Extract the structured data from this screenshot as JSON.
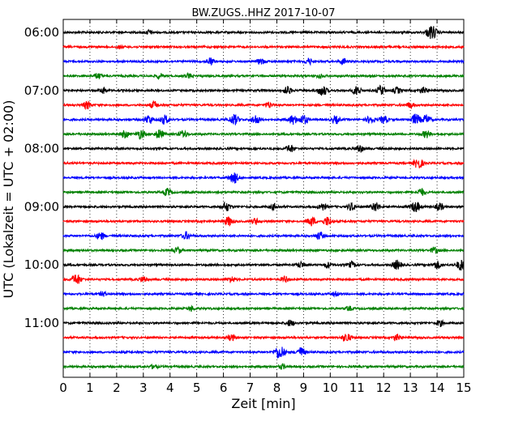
{
  "chart_data": {
    "type": "line",
    "title": "BW.ZUGS..HHZ 2017-10-07",
    "xlabel": "Zeit  [min]",
    "ylabel": "UTC (Lokalzeit = UTC + 02:00)",
    "xlim": [
      0,
      15
    ],
    "x_ticks": [
      0,
      1,
      2,
      3,
      4,
      5,
      6,
      7,
      8,
      9,
      10,
      11,
      12,
      13,
      14,
      15
    ],
    "x_tick_labels": [
      "0",
      "1",
      "2",
      "3",
      "4",
      "5",
      "6",
      "7",
      "8",
      "9",
      "10",
      "11",
      "12",
      "13",
      "14",
      "15"
    ],
    "y_tick_labels": [
      "06:00",
      "07:00",
      "08:00",
      "09:00",
      "10:00",
      "11:00"
    ],
    "grid": "vertical dotted",
    "trace_interval_minutes": 15,
    "traces": [
      {
        "start": "06:00",
        "color": "#000000",
        "events": [
          [
            3.2,
            0.3
          ],
          [
            13.8,
            0.9
          ]
        ]
      },
      {
        "start": "06:15",
        "color": "#ff0000",
        "events": [
          [
            2.1,
            0.2
          ]
        ]
      },
      {
        "start": "06:30",
        "color": "#0000ff",
        "events": [
          [
            5.5,
            0.5
          ],
          [
            7.4,
            0.4
          ],
          [
            9.2,
            0.4
          ],
          [
            10.5,
            0.4
          ]
        ]
      },
      {
        "start": "06:45",
        "color": "#008000",
        "events": [
          [
            1.3,
            0.4
          ],
          [
            3.6,
            0.35
          ],
          [
            4.7,
            0.3
          ],
          [
            9.6,
            0.3
          ]
        ]
      },
      {
        "start": "07:00",
        "color": "#000000",
        "events": [
          [
            1.5,
            0.4
          ],
          [
            8.4,
            0.5
          ],
          [
            9.7,
            0.7
          ],
          [
            11.0,
            0.6
          ],
          [
            11.9,
            0.6
          ],
          [
            12.5,
            0.4
          ],
          [
            13.5,
            0.4
          ]
        ]
      },
      {
        "start": "07:15",
        "color": "#ff0000",
        "events": [
          [
            0.9,
            0.5
          ],
          [
            3.4,
            0.5
          ],
          [
            7.7,
            0.4
          ],
          [
            13.0,
            0.4
          ]
        ]
      },
      {
        "start": "07:30",
        "color": "#0000ff",
        "events": [
          [
            3.2,
            0.6
          ],
          [
            3.8,
            0.6
          ],
          [
            6.4,
            0.7
          ],
          [
            7.2,
            0.6
          ],
          [
            8.6,
            0.6
          ],
          [
            9.0,
            0.6
          ],
          [
            10.2,
            0.5
          ],
          [
            11.5,
            0.5
          ],
          [
            12.0,
            0.5
          ],
          [
            13.2,
            0.7
          ],
          [
            13.6,
            0.6
          ]
        ]
      },
      {
        "start": "07:45",
        "color": "#008000",
        "events": [
          [
            2.3,
            0.5
          ],
          [
            2.9,
            0.6
          ],
          [
            3.6,
            0.6
          ],
          [
            4.5,
            0.5
          ],
          [
            13.6,
            0.5
          ]
        ]
      },
      {
        "start": "08:00",
        "color": "#000000",
        "events": [
          [
            8.5,
            0.5
          ],
          [
            11.1,
            0.5
          ]
        ]
      },
      {
        "start": "08:15",
        "color": "#ff0000",
        "events": [
          [
            13.3,
            0.7
          ]
        ]
      },
      {
        "start": "08:30",
        "color": "#0000ff",
        "events": [
          [
            6.4,
            0.7
          ]
        ]
      },
      {
        "start": "08:45",
        "color": "#008000",
        "events": [
          [
            3.9,
            0.5
          ],
          [
            13.4,
            0.5
          ]
        ]
      },
      {
        "start": "09:00",
        "color": "#000000",
        "events": [
          [
            6.1,
            0.6
          ],
          [
            7.9,
            0.4
          ],
          [
            9.7,
            0.5
          ],
          [
            10.8,
            0.5
          ],
          [
            11.7,
            0.6
          ],
          [
            13.2,
            0.7
          ],
          [
            14.1,
            0.5
          ]
        ]
      },
      {
        "start": "09:15",
        "color": "#ff0000",
        "events": [
          [
            6.2,
            0.6
          ],
          [
            7.2,
            0.4
          ],
          [
            9.3,
            0.6
          ],
          [
            9.9,
            0.6
          ]
        ]
      },
      {
        "start": "09:30",
        "color": "#0000ff",
        "events": [
          [
            1.4,
            0.5
          ],
          [
            4.6,
            0.5
          ],
          [
            9.6,
            0.5
          ]
        ]
      },
      {
        "start": "09:45",
        "color": "#008000",
        "events": [
          [
            4.3,
            0.4
          ],
          [
            13.9,
            0.4
          ]
        ]
      },
      {
        "start": "10:00",
        "color": "#000000",
        "events": [
          [
            8.9,
            0.4
          ],
          [
            9.9,
            0.4
          ],
          [
            10.8,
            0.4
          ],
          [
            12.5,
            0.6
          ],
          [
            14.0,
            0.5
          ],
          [
            14.9,
            0.7
          ]
        ]
      },
      {
        "start": "10:15",
        "color": "#ff0000",
        "events": [
          [
            0.5,
            0.7
          ],
          [
            3.0,
            0.4
          ],
          [
            6.3,
            0.4
          ],
          [
            8.3,
            0.4
          ]
        ]
      },
      {
        "start": "10:30",
        "color": "#0000ff",
        "events": [
          [
            1.5,
            0.3
          ],
          [
            10.2,
            0.3
          ]
        ]
      },
      {
        "start": "10:45",
        "color": "#008000",
        "events": [
          [
            4.8,
            0.3
          ],
          [
            10.7,
            0.3
          ]
        ]
      },
      {
        "start": "11:00",
        "color": "#000000",
        "events": [
          [
            8.5,
            0.4
          ],
          [
            14.1,
            0.4
          ]
        ]
      },
      {
        "start": "11:15",
        "color": "#ff0000",
        "events": [
          [
            6.3,
            0.4
          ],
          [
            10.6,
            0.6
          ],
          [
            12.5,
            0.4
          ]
        ]
      },
      {
        "start": "11:30",
        "color": "#0000ff",
        "events": [
          [
            8.1,
            0.9
          ],
          [
            8.9,
            0.6
          ]
        ]
      },
      {
        "start": "11:45",
        "color": "#008000",
        "events": [
          [
            3.4,
            0.3
          ],
          [
            8.2,
            0.3
          ]
        ]
      }
    ]
  }
}
